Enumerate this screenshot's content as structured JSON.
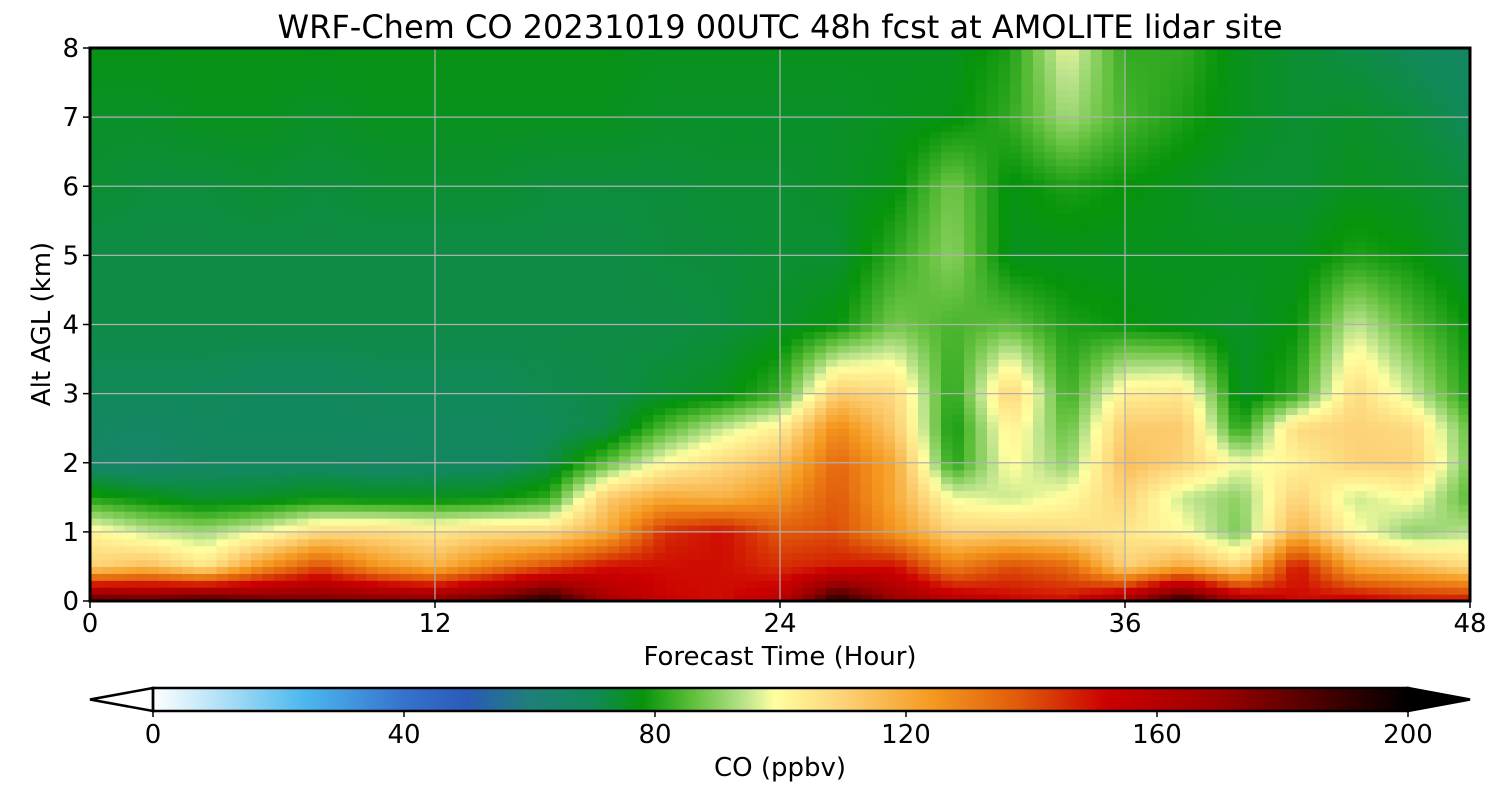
{
  "chart_data": {
    "type": "heatmap",
    "subtype": "filled-contour time-height cross-section",
    "title": "WRF-Chem CO  20231019 00UTC 48h fcst at AMOLITE lidar site",
    "xlabel": "Forecast Time (Hour)",
    "ylabel": "Alt AGL (km)",
    "xlim": [
      0,
      48
    ],
    "ylim": [
      0,
      8
    ],
    "xticks": [
      0,
      12,
      24,
      36,
      48
    ],
    "yticks": [
      0,
      1,
      2,
      3,
      4,
      5,
      6,
      7,
      8
    ],
    "grid": true,
    "x_hours": [
      0,
      2,
      4,
      6,
      8,
      10,
      12,
      14,
      16,
      18,
      20,
      22,
      24,
      26,
      28,
      30,
      32,
      34,
      36,
      38,
      40,
      42,
      44,
      46,
      48
    ],
    "y_km": [
      0,
      0.5,
      1,
      1.5,
      2,
      2.5,
      3,
      4,
      5,
      6,
      7,
      8
    ],
    "z_ppbv": [
      [
        185,
        182,
        188,
        181,
        178,
        177,
        176,
        183,
        196,
        165,
        152,
        150,
        158,
        195,
        170,
        160,
        152,
        150,
        168,
        195,
        165,
        150,
        155,
        150,
        150
      ],
      [
        110,
        115,
        105,
        125,
        140,
        125,
        118,
        130,
        140,
        150,
        150,
        150,
        145,
        148,
        150,
        130,
        140,
        135,
        110,
        120,
        108,
        150,
        120,
        115,
        108
      ],
      [
        102,
        95,
        92,
        98,
        108,
        108,
        105,
        108,
        108,
        120,
        145,
        150,
        138,
        140,
        125,
        110,
        110,
        108,
        105,
        100,
        88,
        118,
        100,
        90,
        94
      ],
      [
        80,
        77,
        74,
        75,
        77,
        76,
        76,
        77,
        82,
        112,
        120,
        118,
        125,
        138,
        120,
        98,
        95,
        100,
        110,
        95,
        90,
        110,
        95,
        100,
        85
      ],
      [
        66,
        65,
        68,
        68,
        68,
        67,
        68,
        68,
        72,
        86,
        100,
        108,
        115,
        135,
        120,
        80,
        100,
        90,
        115,
        110,
        98,
        102,
        110,
        110,
        88
      ],
      [
        68,
        67,
        69,
        69,
        69,
        69,
        69,
        69,
        70,
        72,
        85,
        95,
        103,
        128,
        112,
        78,
        103,
        86,
        112,
        112,
        80,
        108,
        110,
        108,
        86
      ],
      [
        70,
        70,
        70,
        69,
        69,
        70,
        70,
        70,
        71,
        72,
        74,
        76,
        83,
        112,
        108,
        80,
        110,
        82,
        103,
        105,
        75,
        82,
        108,
        95,
        80
      ],
      [
        72,
        72,
        72,
        72,
        72,
        72,
        72,
        72,
        72,
        72,
        72,
        73,
        75,
        78,
        88,
        84,
        86,
        80,
        78,
        76,
        75,
        78,
        95,
        85,
        78
      ],
      [
        72,
        72,
        72,
        72,
        72,
        72,
        72,
        72,
        72,
        72,
        73,
        73,
        74,
        74,
        82,
        90,
        76,
        76,
        76,
        76,
        76,
        76,
        80,
        78,
        74
      ],
      [
        74,
        73,
        73,
        74,
        73,
        74,
        74,
        74,
        73,
        73,
        73,
        74,
        74,
        75,
        77,
        88,
        77,
        80,
        78,
        76,
        74,
        74,
        76,
        75,
        73
      ],
      [
        75,
        75,
        76,
        76,
        75,
        76,
        76,
        76,
        76,
        76,
        75,
        75,
        75,
        75,
        76,
        77,
        82,
        92,
        84,
        80,
        76,
        74,
        75,
        73,
        70
      ],
      [
        77,
        77,
        77,
        77,
        77,
        77,
        77,
        77,
        77,
        77,
        76,
        76,
        76,
        76,
        76,
        76,
        80,
        98,
        82,
        82,
        76,
        74,
        72,
        70,
        68
      ]
    ],
    "colorbar": {
      "label": "CO  (ppbv)",
      "min": 0,
      "max": 200,
      "ticks": [
        0,
        40,
        80,
        120,
        160,
        200
      ],
      "extend": "both",
      "placement": "bottom",
      "colormap": [
        [
          0,
          "#ffffff"
        ],
        [
          12,
          "#a8ddf5"
        ],
        [
          24,
          "#4cb8ef"
        ],
        [
          40,
          "#3672cc"
        ],
        [
          50,
          "#2a5bb8"
        ],
        [
          60,
          "#1f7f7a"
        ],
        [
          70,
          "#11895a"
        ],
        [
          78,
          "#06940a"
        ],
        [
          86,
          "#5fbf3a"
        ],
        [
          94,
          "#b8e28a"
        ],
        [
          99,
          "#ffffa0"
        ],
        [
          110,
          "#fdd277"
        ],
        [
          124,
          "#f59a20"
        ],
        [
          138,
          "#e05a0a"
        ],
        [
          152,
          "#cc0000"
        ],
        [
          170,
          "#9a0000"
        ],
        [
          186,
          "#4a0000"
        ],
        [
          200,
          "#000000"
        ]
      ]
    }
  }
}
